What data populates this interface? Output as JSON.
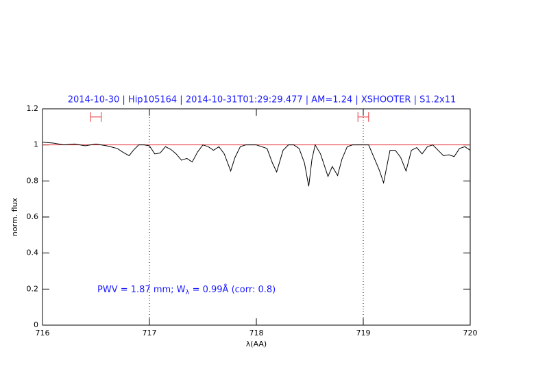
{
  "chart_data": {
    "type": "line",
    "title": "2014-10-30 | Hip105164 | 2014-10-31T01:29:29.477 | AM=1.24 | XSHOOTER | S1.2x11",
    "xlabel": "λ(AA)",
    "ylabel": "norm. flux",
    "annotation": {
      "prefix": "PWV = 1.87 mm; W",
      "sub": "λ",
      "suffix": " = 0.99Å (corr: 0.8)"
    },
    "xlim": [
      716,
      720
    ],
    "ylim": [
      0,
      1.2
    ],
    "xticks": [
      716,
      717,
      718,
      719,
      720
    ],
    "yticks": [
      0,
      0.2,
      0.4,
      0.6,
      0.8,
      1,
      1.2
    ],
    "vlines": [
      717,
      719
    ],
    "hline": 1,
    "hline_color": "#e8383d",
    "ranges": [
      {
        "x": [
          716.45,
          716.55
        ],
        "y": 1.155
      },
      {
        "x": [
          718.95,
          719.05
        ],
        "y": 1.155
      }
    ],
    "series": [
      {
        "color": "#000000",
        "x": [
          716.0,
          716.1,
          716.2,
          716.3,
          716.4,
          716.5,
          716.6,
          716.7,
          716.75,
          716.81,
          716.85,
          716.9,
          716.95,
          717.0,
          717.05,
          717.1,
          717.15,
          717.2,
          717.25,
          717.3,
          717.35,
          717.4,
          717.45,
          717.5,
          717.55,
          717.6,
          717.65,
          717.7,
          717.76,
          717.8,
          717.85,
          717.9,
          718.0,
          718.1,
          718.15,
          718.19,
          718.25,
          718.3,
          718.35,
          718.4,
          718.45,
          718.49,
          718.52,
          718.55,
          718.6,
          718.67,
          718.71,
          718.76,
          718.8,
          718.85,
          718.9,
          719.0,
          719.05,
          719.1,
          719.15,
          719.19,
          719.25,
          719.3,
          719.35,
          719.4,
          719.45,
          719.5,
          719.55,
          719.6,
          719.65,
          719.7,
          719.75,
          719.8,
          719.85,
          719.9,
          719.95,
          720.0
        ],
        "values": [
          1.015,
          1.01,
          1.0,
          1.005,
          0.995,
          1.005,
          0.995,
          0.98,
          0.96,
          0.94,
          0.97,
          1.0,
          1.0,
          0.995,
          0.95,
          0.955,
          0.99,
          0.975,
          0.95,
          0.915,
          0.925,
          0.905,
          0.96,
          1.0,
          0.99,
          0.97,
          0.99,
          0.95,
          0.855,
          0.93,
          0.99,
          1.0,
          1.0,
          0.98,
          0.9,
          0.85,
          0.97,
          1.0,
          1.0,
          0.98,
          0.9,
          0.77,
          0.92,
          1.0,
          0.95,
          0.825,
          0.88,
          0.83,
          0.92,
          0.99,
          1.0,
          1.0,
          1.0,
          0.93,
          0.86,
          0.79,
          0.97,
          0.97,
          0.93,
          0.855,
          0.97,
          0.985,
          0.95,
          0.99,
          1.0,
          0.97,
          0.94,
          0.945,
          0.935,
          0.98,
          0.99,
          0.97
        ]
      }
    ]
  }
}
